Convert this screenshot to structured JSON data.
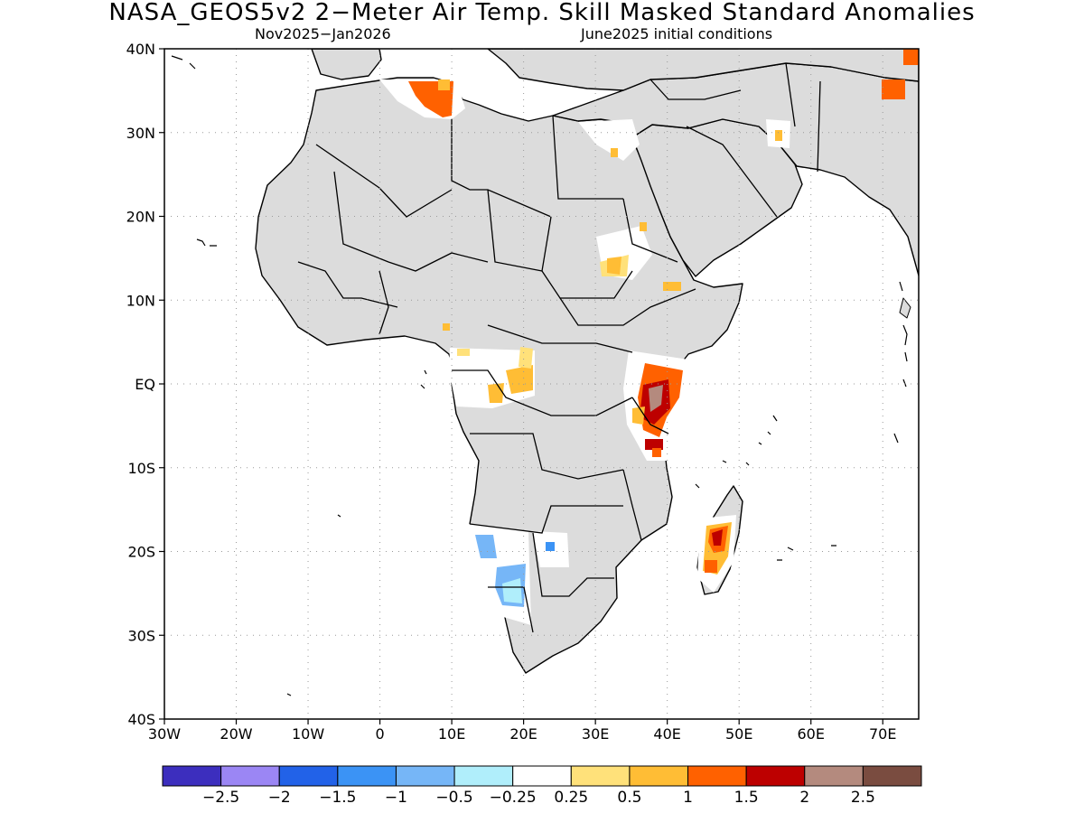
{
  "title": "NASA_GEOS5v2 2−Meter Air Temp. Skill Masked Standard Anomalies",
  "subtitle_left": "Nov2025−Jan2026",
  "subtitle_right": "June2025 initial conditions",
  "map": {
    "lon_range": [
      -30,
      75
    ],
    "lat_range": [
      -40,
      40
    ],
    "lat_ticks": [
      {
        "value": 40,
        "label": "40N"
      },
      {
        "value": 30,
        "label": "30N"
      },
      {
        "value": 20,
        "label": "20N"
      },
      {
        "value": 10,
        "label": "10N"
      },
      {
        "value": 0,
        "label": "EQ"
      },
      {
        "value": -10,
        "label": "10S"
      },
      {
        "value": -20,
        "label": "20S"
      },
      {
        "value": -30,
        "label": "30S"
      },
      {
        "value": -40,
        "label": "40S"
      }
    ],
    "lon_ticks": [
      {
        "value": -30,
        "label": "30W"
      },
      {
        "value": -20,
        "label": "20W"
      },
      {
        "value": -10,
        "label": "10W"
      },
      {
        "value": 0,
        "label": "0"
      },
      {
        "value": 10,
        "label": "10E"
      },
      {
        "value": 20,
        "label": "20E"
      },
      {
        "value": 30,
        "label": "30E"
      },
      {
        "value": 40,
        "label": "40E"
      },
      {
        "value": 50,
        "label": "50E"
      },
      {
        "value": 60,
        "label": "60E"
      },
      {
        "value": 70,
        "label": "70E"
      }
    ],
    "colors": {
      "land": "#dcdcdc",
      "coast": "#000000",
      "grid": "#9a9a9a"
    }
  },
  "colorbar": {
    "colors": [
      "#3c2ebe",
      "#9b86f4",
      "#2262e8",
      "#3b93f5",
      "#76b6f7",
      "#b0eefb",
      "#ffffff",
      "#ffe17a",
      "#ffbd35",
      "#ff6100",
      "#bd0000",
      "#b48a7e",
      "#7a4c40"
    ],
    "labels": [
      "−2.5",
      "−2",
      "−1.5",
      "−1",
      "−0.5",
      "−0.25",
      "0.25",
      "0.5",
      "1",
      "1.5",
      "2",
      "2.5"
    ]
  }
}
